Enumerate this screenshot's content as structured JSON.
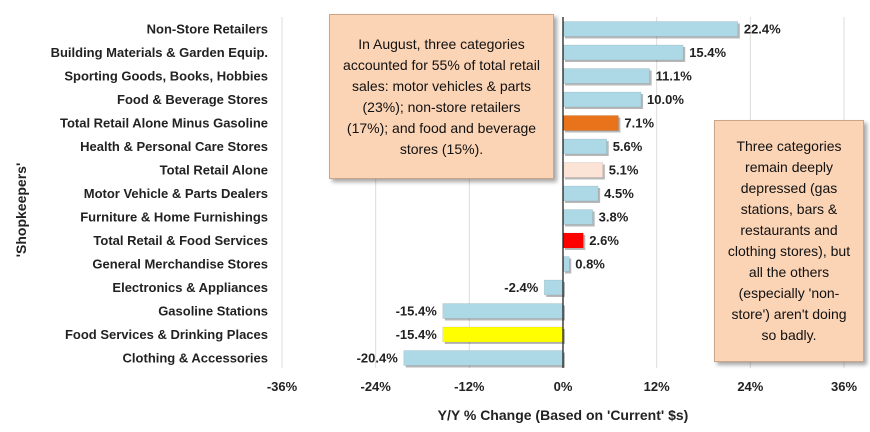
{
  "chart_data": {
    "type": "bar",
    "orientation": "horizontal",
    "categories": [
      "Non-Store Retailers",
      "Building Materials & Garden Equip.",
      "Sporting Goods, Books, Hobbies",
      "Food & Beverage Stores",
      "Total Retail Alone Minus Gasoline",
      "Health & Personal Care Stores",
      "Total Retail Alone",
      "Motor Vehicle & Parts Dealers",
      "Furniture & Home Furnishings",
      "Total Retail & Food Services",
      "General Merchandise Stores",
      "Electronics & Appliances",
      "Gasoline Stations",
      "Food Services & Drinking Places",
      "Clothing & Accessories"
    ],
    "values": [
      22.4,
      15.4,
      11.1,
      10.0,
      7.1,
      5.6,
      5.1,
      4.5,
      3.8,
      2.6,
      0.8,
      -2.4,
      -15.4,
      -15.4,
      -20.4
    ],
    "value_labels": [
      "22.4%",
      "15.4%",
      "11.1%",
      "10.0%",
      "7.1%",
      "5.6%",
      "5.1%",
      "4.5%",
      "3.8%",
      "2.6%",
      "0.8%",
      "-2.4%",
      "-15.4%",
      "-15.4%",
      "-20.4%"
    ],
    "bar_colors": [
      "#add8e6",
      "#add8e6",
      "#add8e6",
      "#add8e6",
      "#e8731a",
      "#add8e6",
      "#fbe3d6",
      "#add8e6",
      "#add8e6",
      "#ff0000",
      "#add8e6",
      "#add8e6",
      "#add8e6",
      "#ffff00",
      "#add8e6"
    ],
    "xlim": [
      -36,
      36
    ],
    "xticks": [
      -36,
      -24,
      -12,
      0,
      12,
      24,
      36
    ],
    "xtick_labels": [
      "-36%",
      "-24%",
      "-12%",
      "0%",
      "12%",
      "24%",
      "36%"
    ],
    "xlabel": "Y/Y % Change (Based on 'Current' $s)",
    "ylabel": "'Shopkeepers'",
    "grid": "vertical",
    "annotations": [
      "In August, three categories accounted for 55% of total retail sales: motor vehicles & parts (23%); non-store retailers (17%); and food and beverage stores (15%).",
      "Three categories remain deeply depressed (gas stations, bars & restaurants and clothing stores), but all the others (especially 'non-store') aren't doing so badly."
    ]
  }
}
